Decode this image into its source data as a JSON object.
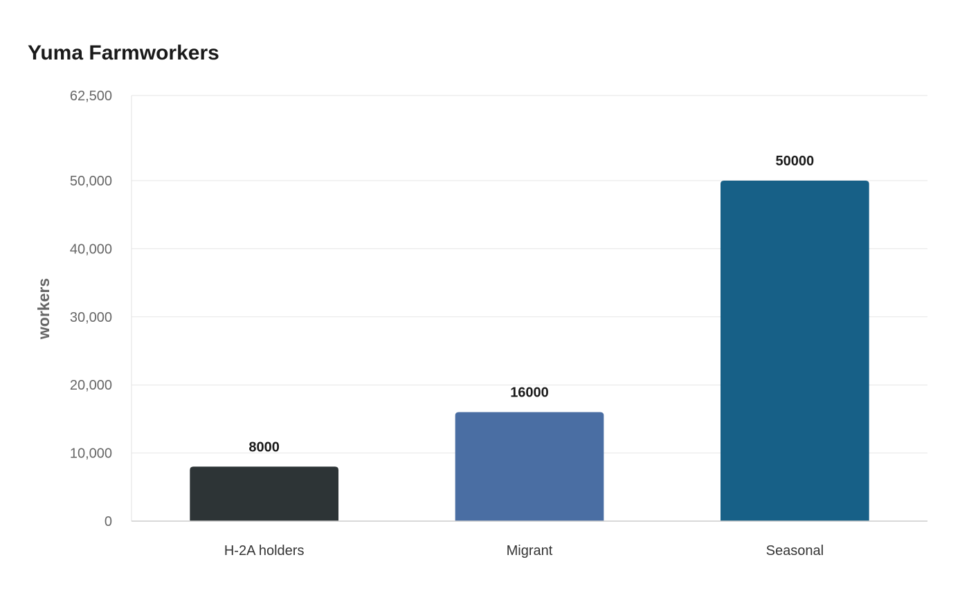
{
  "chart_data": {
    "type": "bar",
    "title": "Yuma Farmworkers",
    "xlabel": "",
    "ylabel": "workers",
    "categories": [
      "H-2A holders",
      "Migrant",
      "Seasonal"
    ],
    "values": [
      8000,
      16000,
      50000
    ],
    "value_labels": [
      "8000",
      "16000",
      "50000"
    ],
    "colors": [
      "#2d3436",
      "#4a6ea3",
      "#176087"
    ],
    "ylim": [
      0,
      62500
    ],
    "yticks": [
      0,
      10000,
      20000,
      30000,
      40000,
      50000,
      62500
    ],
    "ytick_labels": [
      "0",
      "10,000",
      "20,000",
      "30,000",
      "40,000",
      "50,000",
      "62,500"
    ],
    "grid": true,
    "legend": "none"
  }
}
